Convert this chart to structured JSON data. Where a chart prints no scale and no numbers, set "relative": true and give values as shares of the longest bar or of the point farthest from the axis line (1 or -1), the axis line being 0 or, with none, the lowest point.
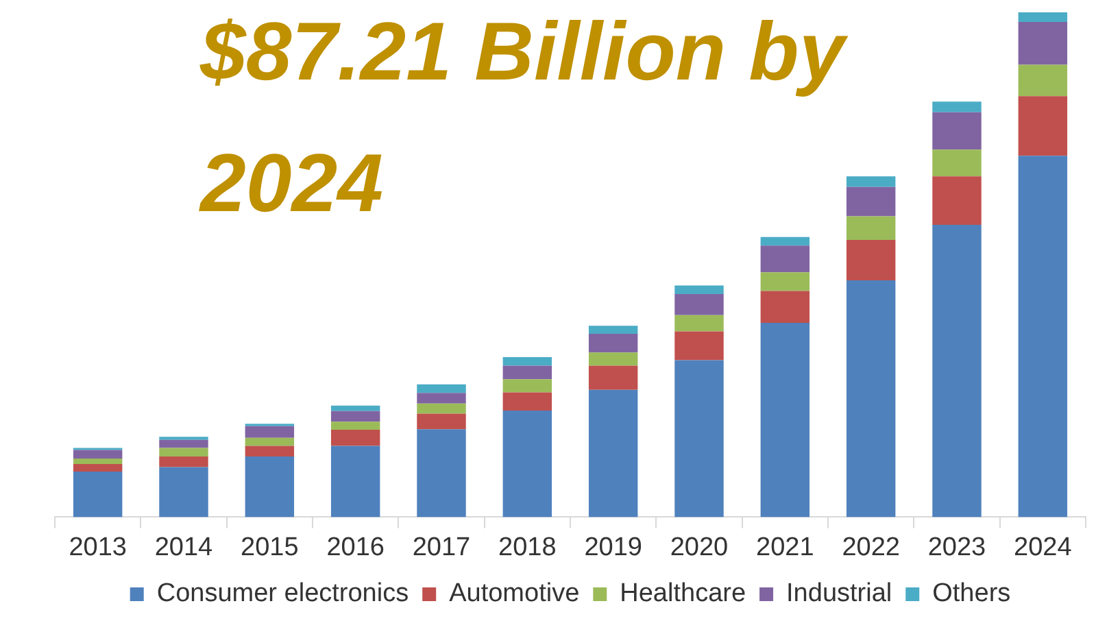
{
  "chart_data": {
    "type": "bar",
    "title": "$87.21 Billion by 2024",
    "stacked": true,
    "relative": true,
    "legend": "bottom",
    "categories": [
      "2013",
      "2014",
      "2015",
      "2016",
      "2017",
      "2018",
      "2019",
      "2020",
      "2021",
      "2022",
      "2023",
      "2024"
    ],
    "series": [
      {
        "name": "Consumer electronics",
        "color": "#4f81bd",
        "values": [
          0.09,
          0.099,
          0.12,
          0.141,
          0.174,
          0.211,
          0.252,
          0.311,
          0.385,
          0.469,
          0.579,
          0.716
        ]
      },
      {
        "name": "Automotive",
        "color": "#c0504d",
        "values": [
          0.015,
          0.021,
          0.021,
          0.032,
          0.031,
          0.036,
          0.048,
          0.057,
          0.063,
          0.08,
          0.096,
          0.118
        ]
      },
      {
        "name": "Healthcare",
        "color": "#9bbb59",
        "values": [
          0.011,
          0.017,
          0.016,
          0.016,
          0.02,
          0.026,
          0.026,
          0.032,
          0.037,
          0.047,
          0.053,
          0.062
        ]
      },
      {
        "name": "Industrial",
        "color": "#8064a2",
        "values": [
          0.017,
          0.016,
          0.023,
          0.021,
          0.021,
          0.027,
          0.037,
          0.042,
          0.053,
          0.058,
          0.074,
          0.085
        ]
      },
      {
        "name": "Others",
        "color": "#4bacc6",
        "values": [
          0.004,
          0.006,
          0.005,
          0.011,
          0.017,
          0.017,
          0.016,
          0.017,
          0.017,
          0.021,
          0.021,
          0.019
        ]
      }
    ]
  }
}
